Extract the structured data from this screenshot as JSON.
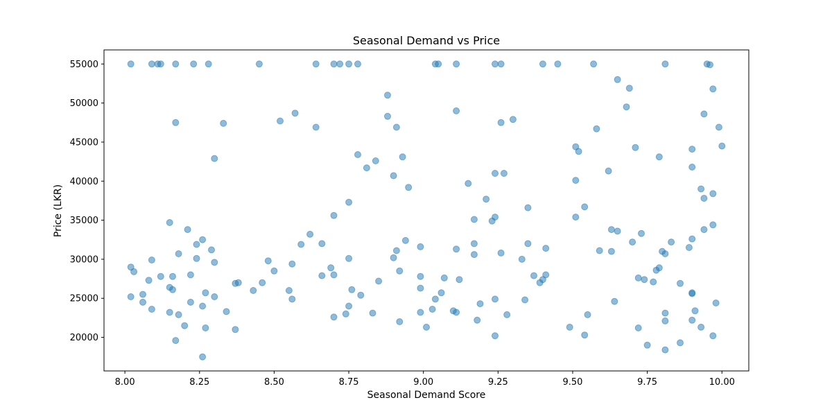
{
  "chart_data": {
    "type": "scatter",
    "title": "Seasonal Demand vs Price",
    "xlabel": "Seasonal Demand Score",
    "ylabel": "Price (LKR)",
    "xlim": [
      7.93,
      10.09
    ],
    "ylim": [
      15700,
      56800
    ],
    "xticks": [
      8.0,
      8.25,
      8.5,
      8.75,
      9.0,
      9.25,
      9.5,
      9.75,
      10.0
    ],
    "xtick_labels": [
      "8.00",
      "8.25",
      "8.50",
      "8.75",
      "9.00",
      "9.25",
      "9.50",
      "9.75",
      "10.00"
    ],
    "yticks": [
      20000,
      25000,
      30000,
      35000,
      40000,
      45000,
      50000,
      55000
    ],
    "ytick_labels": [
      "20000",
      "25000",
      "30000",
      "35000",
      "40000",
      "45000",
      "50000",
      "55000"
    ],
    "grid": false,
    "color": "#1f77b4",
    "points": [
      [
        8.02,
        55000
      ],
      [
        8.09,
        55000
      ],
      [
        8.11,
        55000
      ],
      [
        8.12,
        55000
      ],
      [
        8.17,
        55000
      ],
      [
        8.23,
        55000
      ],
      [
        8.28,
        55000
      ],
      [
        8.45,
        55000
      ],
      [
        8.64,
        55000
      ],
      [
        8.7,
        55000
      ],
      [
        8.72,
        55000
      ],
      [
        8.75,
        55000
      ],
      [
        8.78,
        55000
      ],
      [
        9.04,
        55000
      ],
      [
        9.05,
        55000
      ],
      [
        9.11,
        55000
      ],
      [
        9.24,
        55000
      ],
      [
        9.26,
        55000
      ],
      [
        9.4,
        55000
      ],
      [
        9.45,
        55000
      ],
      [
        9.57,
        55000
      ],
      [
        9.81,
        55000
      ],
      [
        9.95,
        55000
      ],
      [
        9.96,
        54900
      ],
      [
        8.88,
        51000
      ],
      [
        9.65,
        53000
      ],
      [
        9.69,
        51900
      ],
      [
        9.97,
        51800
      ],
      [
        8.17,
        47500
      ],
      [
        8.33,
        47400
      ],
      [
        8.52,
        47700
      ],
      [
        8.57,
        48700
      ],
      [
        8.64,
        46900
      ],
      [
        8.88,
        48300
      ],
      [
        8.91,
        46900
      ],
      [
        9.11,
        49000
      ],
      [
        9.26,
        47500
      ],
      [
        9.3,
        47900
      ],
      [
        9.58,
        46700
      ],
      [
        9.68,
        49500
      ],
      [
        9.94,
        48600
      ],
      [
        9.99,
        46900
      ],
      [
        8.3,
        42900
      ],
      [
        8.78,
        43400
      ],
      [
        8.81,
        41700
      ],
      [
        8.84,
        42600
      ],
      [
        8.9,
        40700
      ],
      [
        8.93,
        43100
      ],
      [
        9.24,
        41000
      ],
      [
        9.27,
        41000
      ],
      [
        9.51,
        44400
      ],
      [
        9.52,
        43800
      ],
      [
        9.71,
        44300
      ],
      [
        9.79,
        43100
      ],
      [
        9.9,
        44100
      ],
      [
        9.9,
        41800
      ],
      [
        10.0,
        44500
      ],
      [
        8.95,
        39200
      ],
      [
        9.15,
        39700
      ],
      [
        9.51,
        40100
      ],
      [
        9.62,
        41300
      ],
      [
        9.93,
        39000
      ],
      [
        9.94,
        37800
      ],
      [
        9.97,
        38400
      ],
      [
        8.15,
        34700
      ],
      [
        8.21,
        33800
      ],
      [
        8.26,
        32500
      ],
      [
        8.24,
        31900
      ],
      [
        8.29,
        31200
      ],
      [
        8.62,
        33200
      ],
      [
        8.7,
        35600
      ],
      [
        8.75,
        37300
      ],
      [
        8.94,
        32400
      ],
      [
        9.17,
        35100
      ],
      [
        9.21,
        37700
      ],
      [
        9.23,
        34900
      ],
      [
        9.24,
        35400
      ],
      [
        9.35,
        36600
      ],
      [
        9.51,
        35400
      ],
      [
        9.54,
        36700
      ],
      [
        9.63,
        33800
      ],
      [
        9.65,
        33600
      ],
      [
        9.73,
        33300
      ],
      [
        9.9,
        32600
      ],
      [
        9.94,
        33800
      ],
      [
        9.97,
        34400
      ],
      [
        8.02,
        29000
      ],
      [
        8.03,
        28400
      ],
      [
        8.09,
        29900
      ],
      [
        8.18,
        30700
      ],
      [
        8.24,
        30100
      ],
      [
        8.3,
        29600
      ],
      [
        8.48,
        29800
      ],
      [
        8.5,
        28500
      ],
      [
        8.56,
        29400
      ],
      [
        8.59,
        31900
      ],
      [
        8.66,
        32000
      ],
      [
        8.69,
        28900
      ],
      [
        8.75,
        30100
      ],
      [
        8.91,
        31100
      ],
      [
        8.9,
        30200
      ],
      [
        8.99,
        31600
      ],
      [
        9.11,
        31300
      ],
      [
        9.17,
        32000
      ],
      [
        9.17,
        30600
      ],
      [
        9.26,
        30800
      ],
      [
        9.33,
        30000
      ],
      [
        9.35,
        32000
      ],
      [
        9.41,
        31400
      ],
      [
        9.59,
        31100
      ],
      [
        9.63,
        31000
      ],
      [
        9.7,
        32200
      ],
      [
        9.8,
        31000
      ],
      [
        9.81,
        30700
      ],
      [
        9.83,
        32200
      ],
      [
        9.89,
        31500
      ],
      [
        8.02,
        25200
      ],
      [
        8.06,
        25500
      ],
      [
        8.06,
        24500
      ],
      [
        8.08,
        27300
      ],
      [
        8.12,
        27800
      ],
      [
        8.15,
        26400
      ],
      [
        8.16,
        26100
      ],
      [
        8.16,
        27800
      ],
      [
        8.22,
        28000
      ],
      [
        8.22,
        24500
      ],
      [
        8.26,
        24000
      ],
      [
        8.27,
        25700
      ],
      [
        8.3,
        25200
      ],
      [
        8.37,
        26900
      ],
      [
        8.38,
        27000
      ],
      [
        8.43,
        26000
      ],
      [
        8.46,
        27000
      ],
      [
        8.55,
        26000
      ],
      [
        8.56,
        24900
      ],
      [
        8.66,
        27900
      ],
      [
        8.7,
        28000
      ],
      [
        8.76,
        26100
      ],
      [
        8.79,
        25400
      ],
      [
        8.85,
        27200
      ],
      [
        8.92,
        28500
      ],
      [
        8.99,
        27800
      ],
      [
        8.99,
        26300
      ],
      [
        9.04,
        24900
      ],
      [
        9.06,
        25700
      ],
      [
        9.07,
        27600
      ],
      [
        9.12,
        27400
      ],
      [
        9.24,
        24900
      ],
      [
        9.34,
        24800
      ],
      [
        9.37,
        27900
      ],
      [
        9.39,
        27000
      ],
      [
        9.4,
        27400
      ],
      [
        9.41,
        28000
      ],
      [
        9.64,
        24600
      ],
      [
        9.72,
        27600
      ],
      [
        9.74,
        27400
      ],
      [
        9.77,
        27100
      ],
      [
        9.78,
        28600
      ],
      [
        9.79,
        28900
      ],
      [
        9.86,
        26900
      ],
      [
        9.9,
        25600
      ],
      [
        9.9,
        25700
      ],
      [
        9.98,
        24400
      ],
      [
        8.09,
        23600
      ],
      [
        8.15,
        23200
      ],
      [
        8.18,
        22900
      ],
      [
        8.2,
        21500
      ],
      [
        8.17,
        19600
      ],
      [
        8.26,
        17500
      ],
      [
        8.27,
        21200
      ],
      [
        8.34,
        23300
      ],
      [
        8.37,
        21000
      ],
      [
        8.7,
        22600
      ],
      [
        8.74,
        23000
      ],
      [
        8.75,
        24000
      ],
      [
        8.83,
        23100
      ],
      [
        8.92,
        22000
      ],
      [
        8.99,
        23200
      ],
      [
        9.01,
        21300
      ],
      [
        9.03,
        23600
      ],
      [
        9.1,
        23400
      ],
      [
        9.11,
        23200
      ],
      [
        9.18,
        22200
      ],
      [
        9.19,
        24300
      ],
      [
        9.24,
        20200
      ],
      [
        9.28,
        22900
      ],
      [
        9.49,
        21300
      ],
      [
        9.54,
        20300
      ],
      [
        9.55,
        22900
      ],
      [
        9.72,
        21200
      ],
      [
        9.75,
        19000
      ],
      [
        9.81,
        18400
      ],
      [
        9.81,
        23100
      ],
      [
        9.81,
        22100
      ],
      [
        9.86,
        19300
      ],
      [
        9.9,
        22200
      ],
      [
        9.91,
        23400
      ],
      [
        9.93,
        21300
      ],
      [
        9.97,
        20200
      ]
    ]
  }
}
